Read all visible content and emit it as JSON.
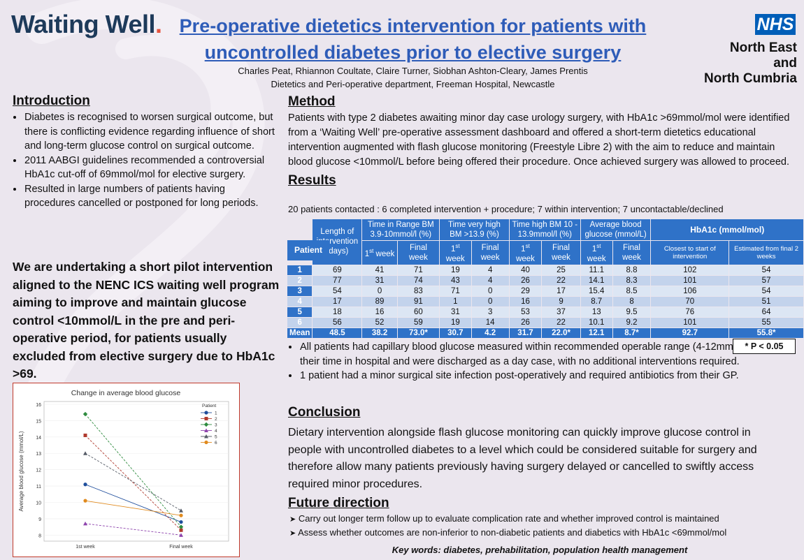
{
  "header": {
    "logo_word": "Waiting Well",
    "logo_dot": ".",
    "title": "Pre-operative dietetics intervention for patients with uncontrolled diabetes prior to elective surgery",
    "authors": "Charles Peat, Rhiannon Coultate, Claire Turner, Siobhan Ashton-Cleary, James Prentis",
    "affiliation": "Dietetics and Peri-operative department, Freeman Hospital, Newcastle",
    "nhs_badge": "NHS",
    "nhs_org_line1": "North East and",
    "nhs_org_line2": "North Cumbria"
  },
  "introduction": {
    "heading": "Introduction",
    "bullets": [
      "Diabetes is recognised to worsen surgical outcome, but there is conflicting evidence regarding influence of short and long-term glucose control on surgical outcome.",
      "2011 AABGI guidelines recommended a controversial HbA1c cut-off of 69mmol/mol for elective surgery.",
      "Resulted in large numbers of patients having procedures cancelled or postponed for long periods."
    ],
    "pilot_statement": "We are undertaking a short pilot intervention aligned to the NENC ICS waiting well program aiming to improve and maintain glucose control <10mmol/L in the pre and peri-operative period, for patients usually excluded from elective surgery due to HbA1c >69."
  },
  "method": {
    "heading": "Method",
    "text": "Patients with type 2 diabetes awaiting minor day case urology surgery, with HbA1c >69mmol/mol were identified from a ‘Waiting Well’ pre-operative assessment dashboard and offered a short-term dietetics educational intervention augmented with flash glucose monitoring (Freestyle Libre 2) with the aim to reduce and maintain blood glucose <10mmol/L before being offered their procedure. Once achieved surgery was allowed to proceed."
  },
  "results": {
    "heading": "Results",
    "summary": "20 patients contacted : 6 completed intervention + procedure; 7 within intervention; 7 uncontactable/declined",
    "table": {
      "h_patient": "Patient",
      "h_length": "Length of intervention (days)",
      "h_tir": "Time in Range BM 3.9-10mmol/l (%)",
      "h_tvh": "Time very high BM >13.9 (%)",
      "h_th": "Time high BM 10 - 13.9mmol/l (%)",
      "h_abg": "Average blood glucose (mmol/L)",
      "h_hba1c": "HbA1c (mmol/mol)",
      "sub_first": "1",
      "sub_st": "st",
      "sub_week": " week",
      "sub_final": "Final week",
      "sub_closest": "Closest to start of intervention",
      "sub_estimated": "Estimated from final 2 weeks",
      "rows": [
        [
          "1",
          "69",
          "41",
          "71",
          "19",
          "4",
          "40",
          "25",
          "11.1",
          "8.8",
          "102",
          "54"
        ],
        [
          "2",
          "77",
          "31",
          "74",
          "43",
          "4",
          "26",
          "22",
          "14.1",
          "8.3",
          "101",
          "57"
        ],
        [
          "3",
          "54",
          "0",
          "83",
          "71",
          "0",
          "29",
          "17",
          "15.4",
          "8.5",
          "106",
          "54"
        ],
        [
          "4",
          "17",
          "89",
          "91",
          "1",
          "0",
          "16",
          "9",
          "8.7",
          "8",
          "70",
          "51"
        ],
        [
          "5",
          "18",
          "16",
          "60",
          "31",
          "3",
          "53",
          "37",
          "13",
          "9.5",
          "76",
          "64"
        ],
        [
          "6",
          "56",
          "52",
          "59",
          "19",
          "14",
          "26",
          "22",
          "10.1",
          "9.2",
          "101",
          "55"
        ]
      ],
      "mean_row": [
        "Mean",
        "48.5",
        "38.2",
        "73.0*",
        "30.7",
        "4.2",
        "31.7",
        "22.0*",
        "12.1",
        "8.7*",
        "92.7",
        "55.8*"
      ]
    },
    "p_note": "* P < 0.05",
    "bullets": [
      "All patients had capillary blood glucose measured within recommended operable range (4-12mmol/L) during their time in hospital and were discharged as a day case, with no additional interventions required.",
      "1 patient had a minor surgical site infection post-operatively and required antibiotics from their GP."
    ]
  },
  "conclusion": {
    "heading": "Conclusion",
    "text": "Dietary intervention alongside flash glucose monitoring can quickly improve glucose control in people with uncontrolled diabetes to a level which could be considered suitable for surgery and therefore allow many patients previously having surgery delayed or cancelled to swiftly access required minor procedures."
  },
  "future": {
    "heading": "Future direction",
    "items": [
      "Carry out longer term follow up to evaluate complication rate and whether improved control is maintained",
      "Assess whether outcomes are non-inferior to non-diabetic patients and diabetics with HbA1c <69mmol/mol"
    ]
  },
  "keywords": "Key words: diabetes, prehabilitation, population health management",
  "chart_data": {
    "type": "line",
    "title": "Change in average blood glucose",
    "xlabel": "",
    "ylabel": "Average blood glucose (mmol/L)",
    "categories": [
      "1st week",
      "Final week"
    ],
    "ylim": [
      7.8,
      16
    ],
    "yticks": [
      8,
      9,
      10,
      11,
      12,
      13,
      14,
      15,
      16
    ],
    "legend_title": "Patient",
    "series": [
      {
        "name": "1",
        "values": [
          11.1,
          8.8
        ],
        "color": "#1f4e9c"
      },
      {
        "name": "2",
        "values": [
          14.1,
          8.3
        ],
        "color": "#b03a2e"
      },
      {
        "name": "3",
        "values": [
          15.4,
          8.5
        ],
        "color": "#2e8b3e"
      },
      {
        "name": "4",
        "values": [
          8.7,
          8.0
        ],
        "color": "#8e44ad"
      },
      {
        "name": "5",
        "values": [
          13.0,
          9.5
        ],
        "color": "#555b66"
      },
      {
        "name": "6",
        "values": [
          10.1,
          9.2
        ],
        "color": "#e08a1e"
      }
    ]
  }
}
